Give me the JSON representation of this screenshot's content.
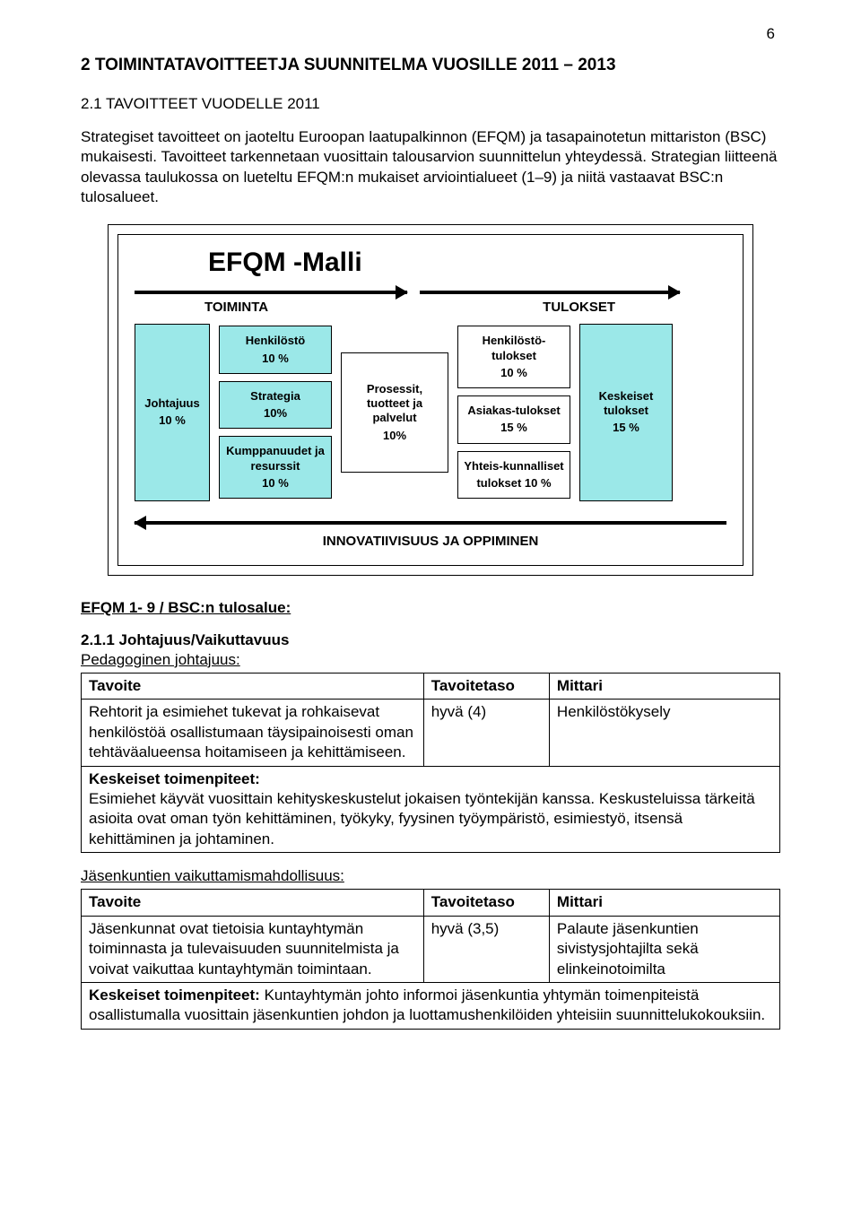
{
  "page_number": "6",
  "title": "2 TOIMINTATAVOITTEETJA SUUNNITELMA VUOSILLE 2011 – 2013",
  "subtitle": "2.1 TAVOITTEET VUODELLE 2011",
  "intro": "Strategiset tavoitteet on jaoteltu Euroopan laatupalkinnon (EFQM) ja tasapainotetun mittariston (BSC) mukaisesti. Tavoitteet tarkennetaan vuosittain talousarvion suunnittelun yhteydessä. Strategian liitteenä olevassa taulukossa on lueteltu EFQM:n mukaiset arviointialueet (1–9) ja niitä vastaavat BSC:n tulosalueet.",
  "diagram": {
    "title": "EFQM  -Malli",
    "top_left_label": "TOIMINTA",
    "top_right_label": "TULOKSET",
    "bottom_label": "INNOVATIIVISUUS JA OPPIMINEN",
    "colors": {
      "cyan": "#9BE8E8",
      "border": "#000000",
      "bg": "#ffffff"
    },
    "boxes": {
      "johtajuus": {
        "label": "Johtajuus",
        "pct": "10 %"
      },
      "henkilosto": {
        "label": "Henkilöstö",
        "pct": "10 %"
      },
      "strategia": {
        "label": "Strategia",
        "pct": "10%"
      },
      "kumppanuudet": {
        "label": "Kumppanuudet ja resurssit",
        "pct": "10 %"
      },
      "prosessit": {
        "label": "Prosessit, tuotteet ja palvelut",
        "pct": "10%"
      },
      "henkilostotulokset": {
        "label": "Henkilöstö-tulokset",
        "pct": "10 %"
      },
      "asiakastulokset": {
        "label": "Asiakas-tulokset",
        "pct": "15 %"
      },
      "yhteiskunnalliset": {
        "label": "Yhteis-kunnalliset",
        "pct": "tulokset  10 %"
      },
      "keskeiset": {
        "label": "Keskeiset tulokset",
        "pct": "15 %"
      }
    }
  },
  "section_title": "EFQM 1- 9 / BSC:n tulosalue:",
  "s211_num": "2.1.1 Johtajuus/Vaikuttavuus",
  "s211_sub": "Pedagoginen johtajuus:",
  "table1": {
    "headers": [
      "Tavoite",
      "Tavoitetaso",
      "Mittari"
    ],
    "row": [
      "Rehtorit ja esimiehet tukevat ja rohkaisevat henkilöstöä osallistumaan täysipainoisesti oman tehtäväalueensa hoitamiseen ja kehittämiseen.",
      "hyvä (4)",
      "Henkilöstökysely"
    ],
    "toimenpiteet_label": "Keskeiset toimenpiteet:",
    "toimenpiteet_text": "Esimiehet käyvät vuosittain kehityskeskustelut jokaisen työntekijän kanssa. Keskusteluissa tärkeitä asioita ovat oman työn kehittäminen, työkyky, fyysinen työympäristö, esimiestyö, itsensä kehittäminen ja johtaminen."
  },
  "s211b_sub": "Jäsenkuntien vaikuttamismahdollisuus:",
  "table2": {
    "headers": [
      "Tavoite",
      "Tavoitetaso",
      "Mittari"
    ],
    "row": [
      "Jäsenkunnat ovat tietoisia kuntayhtymän toiminnasta ja tulevaisuuden suunnitelmista ja voivat vaikuttaa kuntayhtymän toimintaan.",
      "hyvä (3,5)",
      "Palaute jäsenkuntien sivistysjohtajilta sekä elinkeinotoimilta"
    ],
    "toimenpiteet_label": "Keskeiset toimenpiteet:",
    "toimenpiteet_text": " Kuntayhtymän johto informoi jäsenkuntia yhtymän toimenpiteistä osallistumalla vuosittain jäsenkuntien johdon ja luottamushenkilöiden yhteisiin suunnittelukokouksiin."
  }
}
